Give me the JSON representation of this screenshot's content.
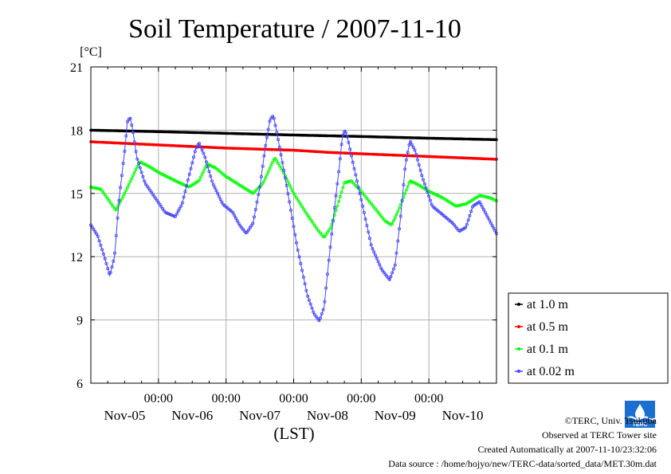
{
  "chart_data": {
    "type": "line",
    "title": "Soil Temperature / 2007-11-10",
    "ylabel": "[°C]",
    "xlabel": "(LST)",
    "ylim": [
      6,
      21
    ],
    "yticks": [
      "6",
      "9",
      "12",
      "15",
      "18",
      "21"
    ],
    "xlim_days": [
      0,
      6
    ],
    "time_ticks": [
      "00:00",
      "00:00",
      "00:00",
      "00:00",
      "00:00"
    ],
    "date_ticks": [
      "Nov-05",
      "Nov-06",
      "Nov-07",
      "Nov-08",
      "Nov-09",
      "Nov-10"
    ],
    "grid": true,
    "legend_position": "right",
    "series": [
      {
        "name": "at 1.0 m",
        "color": "#000000",
        "points": [
          [
            0,
            18.0
          ],
          [
            1,
            17.93
          ],
          [
            2,
            17.85
          ],
          [
            3,
            17.77
          ],
          [
            4,
            17.7
          ],
          [
            5,
            17.62
          ],
          [
            6,
            17.55
          ]
        ]
      },
      {
        "name": "at 0.5 m",
        "color": "#ff0000",
        "points": [
          [
            0,
            17.45
          ],
          [
            1,
            17.3
          ],
          [
            2,
            17.15
          ],
          [
            3,
            17.05
          ],
          [
            3.5,
            16.95
          ],
          [
            4,
            16.88
          ],
          [
            5,
            16.75
          ],
          [
            6,
            16.62
          ]
        ]
      },
      {
        "name": "at 0.1 m",
        "color": "#00ff00",
        "points": [
          [
            0,
            15.3
          ],
          [
            0.15,
            15.2
          ],
          [
            0.37,
            14.2
          ],
          [
            0.5,
            15.0
          ],
          [
            0.72,
            16.5
          ],
          [
            0.85,
            16.3
          ],
          [
            1.0,
            16.0
          ],
          [
            1.25,
            15.6
          ],
          [
            1.45,
            15.3
          ],
          [
            1.6,
            15.6
          ],
          [
            1.72,
            16.4
          ],
          [
            1.85,
            16.2
          ],
          [
            2.0,
            15.8
          ],
          [
            2.2,
            15.4
          ],
          [
            2.4,
            15.0
          ],
          [
            2.55,
            15.5
          ],
          [
            2.72,
            16.7
          ],
          [
            2.85,
            16.0
          ],
          [
            3.0,
            15.0
          ],
          [
            3.2,
            14.0
          ],
          [
            3.35,
            13.3
          ],
          [
            3.45,
            12.9
          ],
          [
            3.55,
            13.4
          ],
          [
            3.75,
            15.5
          ],
          [
            3.85,
            15.6
          ],
          [
            4.0,
            15.1
          ],
          [
            4.2,
            14.3
          ],
          [
            4.35,
            13.7
          ],
          [
            4.45,
            13.5
          ],
          [
            4.55,
            14.2
          ],
          [
            4.72,
            15.6
          ],
          [
            4.85,
            15.4
          ],
          [
            5.0,
            15.1
          ],
          [
            5.2,
            14.8
          ],
          [
            5.4,
            14.4
          ],
          [
            5.55,
            14.5
          ],
          [
            5.75,
            14.9
          ],
          [
            5.9,
            14.8
          ],
          [
            6.0,
            14.65
          ]
        ]
      },
      {
        "name": "at 0.02 m",
        "color": "#4444ff",
        "points": [
          [
            0,
            13.5
          ],
          [
            0.1,
            13.0
          ],
          [
            0.2,
            12.0
          ],
          [
            0.28,
            11.1
          ],
          [
            0.35,
            12.0
          ],
          [
            0.42,
            14.8
          ],
          [
            0.5,
            17.0
          ],
          [
            0.54,
            18.4
          ],
          [
            0.58,
            18.6
          ],
          [
            0.62,
            18.0
          ],
          [
            0.68,
            16.7
          ],
          [
            0.8,
            15.5
          ],
          [
            0.95,
            14.8
          ],
          [
            1.1,
            14.1
          ],
          [
            1.25,
            13.9
          ],
          [
            1.35,
            14.5
          ],
          [
            1.45,
            15.8
          ],
          [
            1.55,
            17.1
          ],
          [
            1.6,
            17.4
          ],
          [
            1.68,
            16.8
          ],
          [
            1.8,
            15.5
          ],
          [
            1.95,
            14.5
          ],
          [
            2.1,
            14.1
          ],
          [
            2.2,
            13.5
          ],
          [
            2.3,
            13.1
          ],
          [
            2.4,
            13.6
          ],
          [
            2.5,
            15.3
          ],
          [
            2.58,
            17.2
          ],
          [
            2.65,
            18.5
          ],
          [
            2.7,
            18.7
          ],
          [
            2.78,
            17.4
          ],
          [
            2.9,
            15.3
          ],
          [
            3.05,
            12.5
          ],
          [
            3.2,
            10.2
          ],
          [
            3.3,
            9.3
          ],
          [
            3.38,
            8.95
          ],
          [
            3.45,
            9.6
          ],
          [
            3.52,
            11.8
          ],
          [
            3.6,
            14.2
          ],
          [
            3.68,
            16.4
          ],
          [
            3.72,
            17.7
          ],
          [
            3.76,
            18.0
          ],
          [
            3.8,
            17.6
          ],
          [
            3.88,
            16.4
          ],
          [
            4.0,
            14.7
          ],
          [
            4.15,
            12.5
          ],
          [
            4.3,
            11.4
          ],
          [
            4.42,
            10.9
          ],
          [
            4.5,
            11.6
          ],
          [
            4.58,
            13.8
          ],
          [
            4.65,
            16.3
          ],
          [
            4.72,
            17.5
          ],
          [
            4.8,
            17.0
          ],
          [
            4.9,
            15.8
          ],
          [
            5.05,
            14.4
          ],
          [
            5.2,
            14.0
          ],
          [
            5.35,
            13.6
          ],
          [
            5.45,
            13.2
          ],
          [
            5.55,
            13.4
          ],
          [
            5.65,
            14.4
          ],
          [
            5.75,
            14.6
          ],
          [
            5.85,
            14.0
          ],
          [
            5.95,
            13.4
          ],
          [
            6.0,
            13.1
          ]
        ]
      }
    ]
  },
  "credits": {
    "copyright": "©TERC, Univ. Tsukuba",
    "observed": "Observed at TERC Tower site",
    "created": "Created Automatically at 2007-11-10/23:32:06",
    "source": "Data source : /home/hojyo/new/TERC-data/sorted_data/MET.30m.dat"
  },
  "logo": {
    "text": "TERC",
    "color": "#1a6fd0"
  }
}
